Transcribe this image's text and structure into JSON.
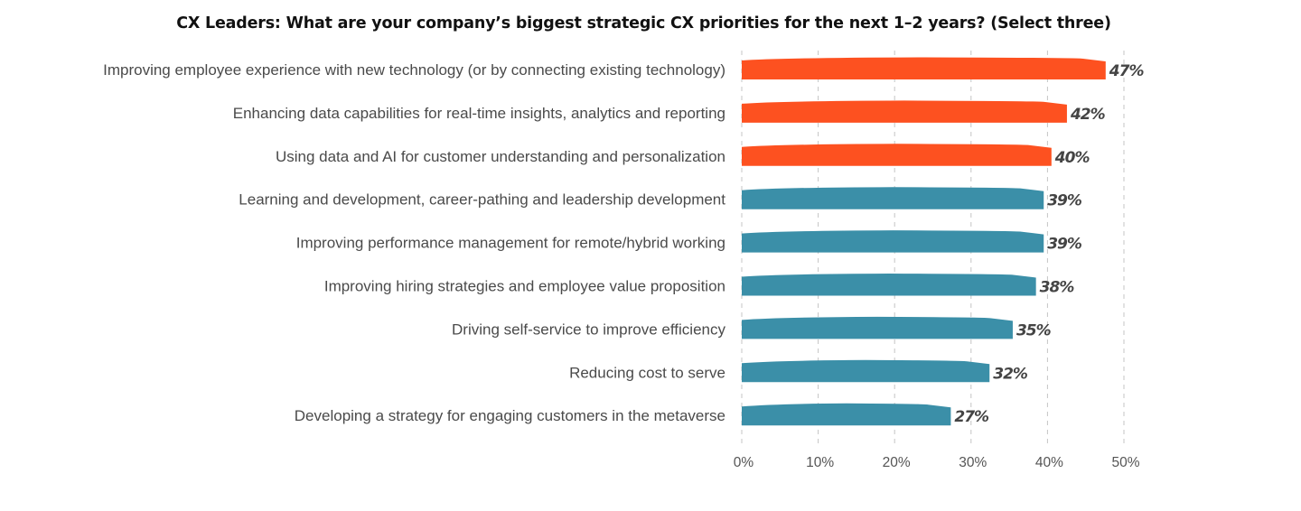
{
  "chart_data": {
    "type": "bar",
    "orientation": "horizontal",
    "title": "CX Leaders: What are your company’s biggest strategic CX priorities for the next 1–2 years? (Select three)",
    "categories": [
      "Improving employee experience with new technology (or by connecting existing technology)",
      "Enhancing data capabilities for real-time insights, analytics and reporting",
      "Using data and AI for customer understanding and personalization",
      "Learning and development, career-pathing and leadership development",
      "Improving performance management for remote/hybrid working",
      "Improving hiring strategies and employee value proposition",
      "Driving self-service to improve efficiency",
      "Reducing cost to serve",
      "Developing a strategy for engaging customers in the metaverse"
    ],
    "values": [
      47,
      42,
      40,
      39,
      39,
      38,
      35,
      32,
      27
    ],
    "data_labels": [
      "47%",
      "42%",
      "40%",
      "39%",
      "39%",
      "38%",
      "35%",
      "32%",
      "27%"
    ],
    "highlight": [
      true,
      true,
      true,
      false,
      false,
      false,
      false,
      false,
      false
    ],
    "xlim": [
      0,
      50
    ],
    "xticks": [
      "0%",
      "10%",
      "20%",
      "30%",
      "40%",
      "50%"
    ],
    "xlabel": "",
    "ylabel": "",
    "grid": "vertical dashed",
    "colors": {
      "highlight": "#FD5120",
      "default": "#3B8FA8"
    }
  }
}
